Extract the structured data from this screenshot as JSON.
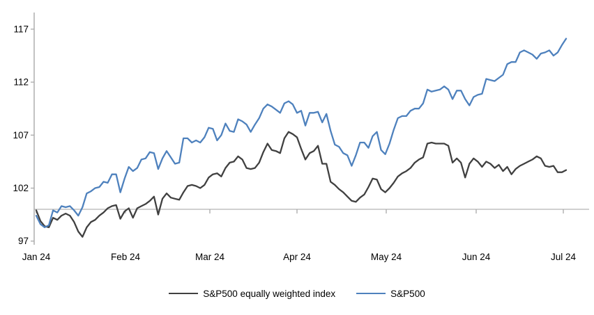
{
  "chart_data": {
    "type": "line",
    "title": "",
    "xlabel": "",
    "ylabel": "",
    "grid": "baseline-only",
    "baseline_value": 100,
    "legend_position": "bottom-center",
    "axis_color": "#a9a9a9",
    "y_ticks": [
      97,
      102,
      107,
      112,
      117
    ],
    "ylim": [
      96.5,
      118
    ],
    "x_tick_labels": [
      "Jan 24",
      "Feb 24",
      "Mar 24",
      "Apr 24",
      "May 24",
      "Jun 24",
      "Jul 24"
    ],
    "x_dates": [
      "2024-01-02",
      "2024-01-03",
      "2024-01-04",
      "2024-01-05",
      "2024-01-08",
      "2024-01-09",
      "2024-01-10",
      "2024-01-11",
      "2024-01-12",
      "2024-01-16",
      "2024-01-17",
      "2024-01-18",
      "2024-01-19",
      "2024-01-22",
      "2024-01-23",
      "2024-01-24",
      "2024-01-25",
      "2024-01-26",
      "2024-01-29",
      "2024-01-30",
      "2024-01-31",
      "2024-02-01",
      "2024-02-02",
      "2024-02-05",
      "2024-02-06",
      "2024-02-07",
      "2024-02-08",
      "2024-02-09",
      "2024-02-12",
      "2024-02-13",
      "2024-02-14",
      "2024-02-15",
      "2024-02-16",
      "2024-02-20",
      "2024-02-21",
      "2024-02-22",
      "2024-02-23",
      "2024-02-26",
      "2024-02-27",
      "2024-02-28",
      "2024-02-29",
      "2024-03-01",
      "2024-03-04",
      "2024-03-05",
      "2024-03-06",
      "2024-03-07",
      "2024-03-08",
      "2024-03-11",
      "2024-03-12",
      "2024-03-13",
      "2024-03-14",
      "2024-03-15",
      "2024-03-18",
      "2024-03-19",
      "2024-03-20",
      "2024-03-21",
      "2024-03-22",
      "2024-03-25",
      "2024-03-26",
      "2024-03-27",
      "2024-03-28",
      "2024-04-01",
      "2024-04-02",
      "2024-04-03",
      "2024-04-04",
      "2024-04-05",
      "2024-04-08",
      "2024-04-09",
      "2024-04-10",
      "2024-04-11",
      "2024-04-12",
      "2024-04-15",
      "2024-04-16",
      "2024-04-17",
      "2024-04-18",
      "2024-04-19",
      "2024-04-22",
      "2024-04-23",
      "2024-04-24",
      "2024-04-25",
      "2024-04-26",
      "2024-04-29",
      "2024-04-30",
      "2024-05-01",
      "2024-05-02",
      "2024-05-03",
      "2024-05-06",
      "2024-05-07",
      "2024-05-08",
      "2024-05-09",
      "2024-05-10",
      "2024-05-13",
      "2024-05-14",
      "2024-05-15",
      "2024-05-16",
      "2024-05-17",
      "2024-05-20",
      "2024-05-21",
      "2024-05-22",
      "2024-05-23",
      "2024-05-24",
      "2024-05-28",
      "2024-05-29",
      "2024-05-30",
      "2024-05-31",
      "2024-06-03",
      "2024-06-04",
      "2024-06-05",
      "2024-06-06",
      "2024-06-07",
      "2024-06-10",
      "2024-06-11",
      "2024-06-12",
      "2024-06-13",
      "2024-06-14",
      "2024-06-17",
      "2024-06-18",
      "2024-06-20",
      "2024-06-21",
      "2024-06-24",
      "2024-06-25",
      "2024-06-26",
      "2024-06-27",
      "2024-06-28",
      "2024-07-01",
      "2024-07-02",
      "2024-07-03"
    ],
    "series": [
      {
        "name": "S&P500 equally weighted index",
        "color": "#404040",
        "values": [
          99.9,
          98.9,
          98.4,
          98.3,
          99.2,
          99.0,
          99.4,
          99.6,
          99.4,
          98.8,
          97.9,
          97.4,
          98.3,
          98.8,
          99.0,
          99.4,
          99.7,
          100.1,
          100.3,
          100.4,
          99.1,
          99.8,
          100.1,
          99.2,
          100.1,
          100.3,
          100.5,
          100.8,
          101.2,
          99.5,
          101.0,
          101.5,
          101.1,
          101.0,
          100.9,
          101.6,
          102.2,
          102.3,
          102.2,
          102.0,
          102.3,
          103.0,
          103.3,
          103.4,
          103.1,
          103.9,
          104.4,
          104.5,
          105.0,
          104.7,
          103.9,
          103.8,
          103.9,
          104.4,
          105.4,
          106.2,
          105.6,
          105.5,
          105.3,
          106.7,
          107.3,
          107.1,
          106.8,
          105.7,
          104.7,
          105.3,
          105.5,
          106.0,
          104.3,
          104.3,
          102.6,
          102.3,
          101.9,
          101.6,
          101.2,
          100.8,
          100.7,
          101.1,
          101.4,
          102.1,
          102.9,
          102.8,
          101.9,
          101.6,
          102.0,
          102.5,
          103.1,
          103.4,
          103.6,
          103.9,
          104.4,
          104.7,
          104.9,
          106.2,
          106.3,
          106.2,
          106.2,
          106.2,
          106.0,
          104.4,
          104.8,
          104.4,
          103.0,
          104.3,
          104.8,
          104.5,
          104.0,
          104.5,
          104.3,
          103.9,
          104.2,
          103.6,
          104.0,
          103.3,
          103.8,
          104.1,
          104.3,
          104.5,
          104.7,
          105.0,
          104.8,
          104.1,
          104.0,
          104.1,
          103.5,
          103.5,
          103.7
        ]
      },
      {
        "name": "S&P500",
        "color": "#4e81bd",
        "values": [
          99.4,
          98.6,
          98.3,
          98.5,
          99.9,
          99.7,
          100.3,
          100.2,
          100.3,
          99.9,
          99.4,
          100.2,
          101.5,
          101.7,
          102.0,
          102.1,
          102.6,
          102.5,
          103.3,
          103.3,
          101.6,
          102.9,
          104.0,
          103.6,
          103.9,
          104.7,
          104.8,
          105.4,
          105.3,
          103.8,
          104.8,
          105.5,
          104.9,
          104.3,
          104.4,
          106.7,
          106.7,
          106.3,
          106.5,
          106.3,
          106.8,
          107.7,
          107.6,
          106.5,
          107.0,
          108.1,
          107.4,
          107.3,
          108.5,
          108.3,
          108.0,
          107.3,
          108.0,
          108.6,
          109.5,
          109.9,
          109.7,
          109.4,
          109.1,
          110.0,
          110.2,
          109.9,
          109.1,
          109.3,
          107.9,
          109.1,
          109.1,
          109.2,
          108.2,
          109.0,
          107.4,
          106.1,
          105.9,
          105.3,
          105.1,
          104.1,
          105.1,
          106.3,
          106.3,
          105.8,
          106.9,
          107.3,
          105.6,
          105.2,
          106.2,
          107.5,
          108.6,
          108.8,
          108.8,
          109.3,
          109.5,
          109.5,
          110.0,
          111.3,
          111.1,
          111.2,
          111.3,
          111.6,
          111.3,
          110.4,
          111.2,
          111.2,
          110.4,
          109.8,
          110.6,
          110.8,
          110.9,
          112.3,
          112.2,
          112.1,
          112.4,
          112.7,
          113.7,
          113.9,
          113.9,
          114.8,
          115.0,
          114.8,
          114.6,
          114.2,
          114.7,
          114.8,
          115.0,
          114.5,
          114.8,
          115.5,
          116.1
        ]
      }
    ]
  },
  "legend": {
    "items": [
      {
        "label": "S&P500 equally weighted index"
      },
      {
        "label": "S&P500"
      }
    ]
  }
}
